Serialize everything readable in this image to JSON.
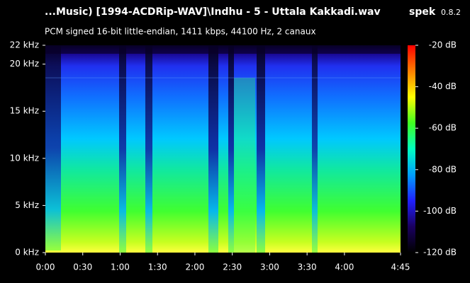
{
  "chart_data": {
    "type": "spectrogram",
    "title": "...Music) [1994-ACDRip-WAV]\\Indhu - 5 - Uttala Kakkadi.wav",
    "app_name": "spek",
    "app_version": "0.8.2",
    "subtitle": "PCM signed 16-bit little-endian, 1411 kbps, 44100 Hz, 2 canaux",
    "xlim": [
      0,
      285
    ],
    "xticks": [
      {
        "value": 0,
        "label": "0:00"
      },
      {
        "value": 30,
        "label": "0:30"
      },
      {
        "value": 60,
        "label": "1:00"
      },
      {
        "value": 90,
        "label": "1:30"
      },
      {
        "value": 120,
        "label": "2:00"
      },
      {
        "value": 150,
        "label": "2:30"
      },
      {
        "value": 180,
        "label": "3:00"
      },
      {
        "value": 210,
        "label": "3:30"
      },
      {
        "value": 240,
        "label": "4:00"
      },
      {
        "value": 285,
        "label": "4:45"
      }
    ],
    "ylim": [
      0,
      22
    ],
    "yticks": [
      {
        "value": 0,
        "label": "0 kHz"
      },
      {
        "value": 5,
        "label": "5 kHz"
      },
      {
        "value": 10,
        "label": "10 kHz"
      },
      {
        "value": 15,
        "label": "15 kHz"
      },
      {
        "value": 20,
        "label": "20 kHz"
      },
      {
        "value": 22,
        "label": "22 kHz"
      }
    ],
    "zlim": [
      -120,
      -20
    ],
    "zticks": [
      {
        "value": -20,
        "label": "-20 dB"
      },
      {
        "value": -40,
        "label": "-40 dB"
      },
      {
        "value": -60,
        "label": "-60 dB"
      },
      {
        "value": -80,
        "label": "-80 dB"
      },
      {
        "value": -100,
        "label": "-100 dB"
      },
      {
        "value": -120,
        "label": "-120 dB"
      }
    ],
    "colormap": [
      "#000000",
      "#1a0060",
      "#2020ff",
      "#00a0ff",
      "#00ffc0",
      "#40ff20",
      "#ffff00",
      "#ff8000",
      "#ff0000"
    ]
  }
}
